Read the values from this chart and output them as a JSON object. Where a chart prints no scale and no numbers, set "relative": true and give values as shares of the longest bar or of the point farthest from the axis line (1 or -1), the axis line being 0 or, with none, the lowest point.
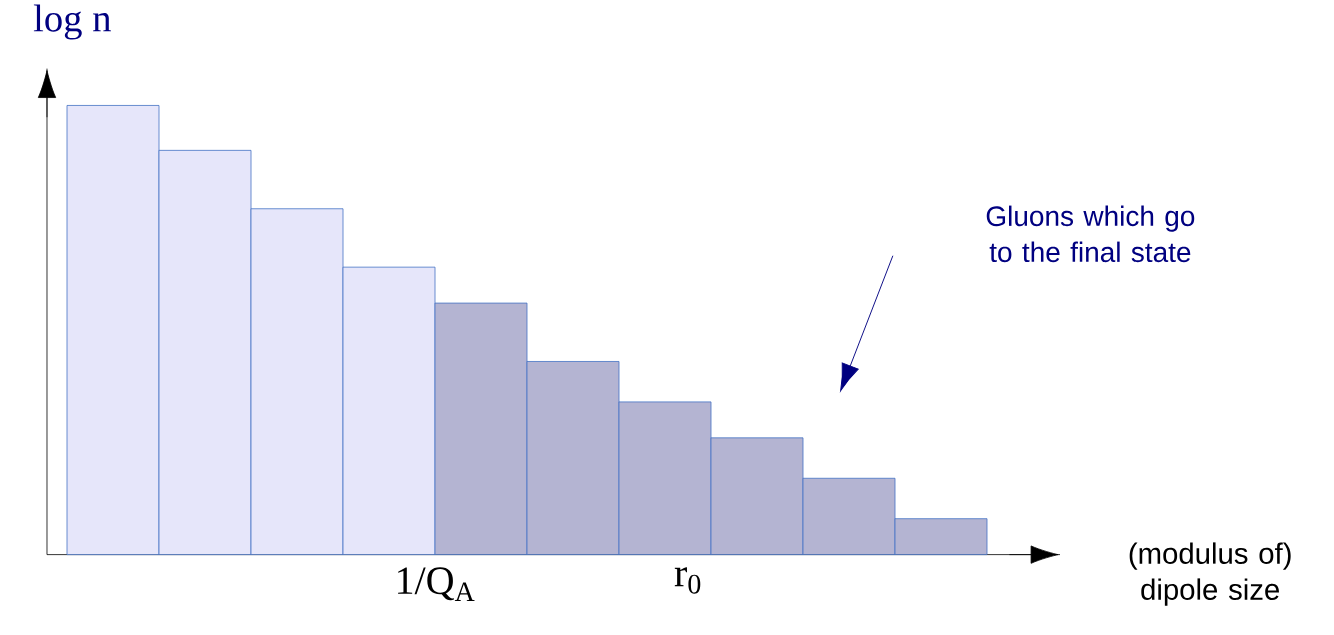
{
  "chart_data": {
    "type": "bar",
    "relative": true,
    "ylabel": "log n",
    "xlabel": "(modulus of) dipole size",
    "categories": [
      null,
      null,
      null,
      null,
      null,
      null,
      null,
      null,
      null,
      null
    ],
    "values": [
      1,
      0.9,
      0.77,
      0.64,
      0.56,
      0.43,
      0.34,
      0.26,
      0.17,
      0.08
    ],
    "colors": [
      "#e6e6fa",
      "#e6e6fa",
      "#e6e6fa",
      "#e6e6fa",
      "#b4b4d2",
      "#b4b4d2",
      "#b4b4d2",
      "#b4b4d2",
      "#b4b4d2",
      "#b4b4d2"
    ],
    "annotations": [
      "Gluons which go to the final state",
      "1/Q$_{A}$",
      "r$_{0}$"
    ]
  }
}
